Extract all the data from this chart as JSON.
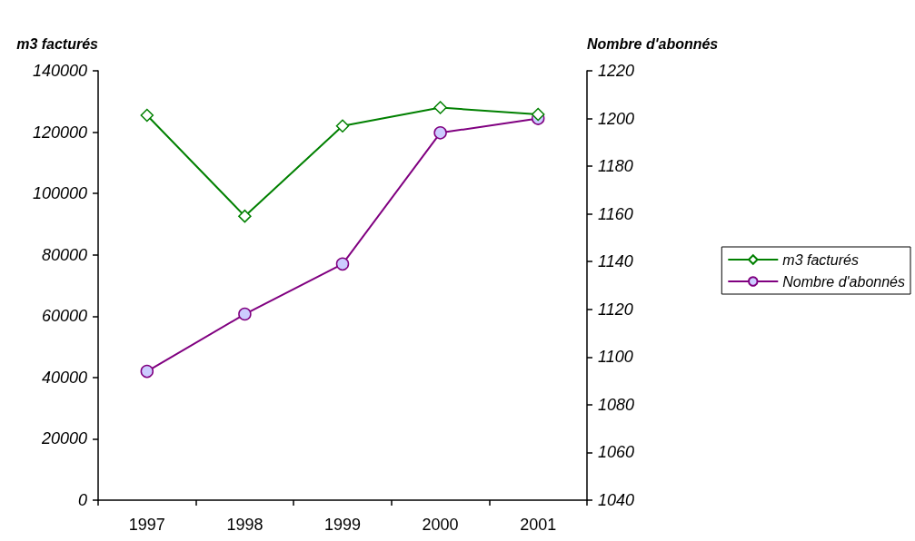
{
  "chart_data": {
    "type": "line",
    "ylabel": "m3 facturés",
    "y2label": "Nombre d'abonnés",
    "categories": [
      "1997",
      "1998",
      "1999",
      "2000",
      "2001"
    ],
    "series": [
      {
        "name": "m3 facturés",
        "color": "#008000",
        "marker": "diamond",
        "values": [
          125500,
          92600,
          122000,
          128000,
          125800
        ]
      },
      {
        "name": "Nombre d'abonnés",
        "color": "#800080",
        "marker": "circle",
        "axis": "y2",
        "values": [
          1094,
          1118,
          1139,
          1194,
          1200
        ]
      }
    ],
    "ylim": [
      0,
      140000
    ],
    "yticks": [
      0,
      20000,
      40000,
      60000,
      80000,
      100000,
      120000,
      140000
    ],
    "y2lim": [
      1040,
      1220
    ],
    "y2ticks": [
      1040,
      1060,
      1080,
      1100,
      1120,
      1140,
      1160,
      1180,
      1200,
      1220
    ],
    "grid": false,
    "legend": "right",
    "line_style": "solid"
  }
}
